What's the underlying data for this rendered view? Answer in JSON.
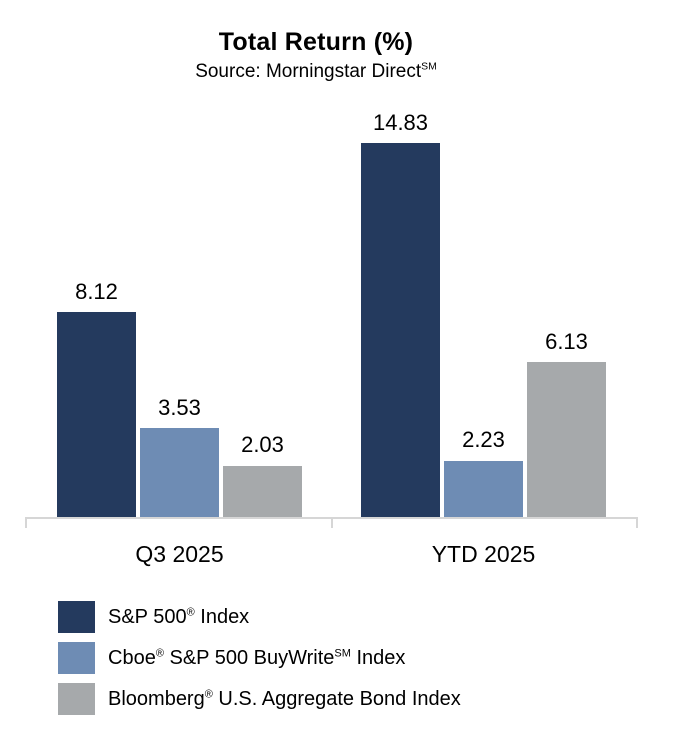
{
  "title": "Total Return (%)",
  "subtitle": {
    "text": "Source: Morningstar Direct",
    "sup": "SM"
  },
  "colors": {
    "background": "#FFFFFF",
    "text": "#000000",
    "axis": "#D6D6D6",
    "series_navy": "#243A5E",
    "series_blue": "#6E8CB4",
    "series_gray": "#A6A9AB"
  },
  "chart_data": {
    "type": "bar",
    "title": "Total Return (%)",
    "subtitle": "Source: Morningstar Direct SM",
    "xlabel": "",
    "ylabel": "",
    "ylim": [
      0,
      14.83
    ],
    "grid": false,
    "legend_position": "bottom-left",
    "value_label_decimals": 2,
    "categories": [
      "Q3 2025",
      "YTD 2025"
    ],
    "series": [
      {
        "name": "S&P 500 (R) Index",
        "color": "#243A5E",
        "values": [
          8.12,
          14.83
        ],
        "label_parts": [
          {
            "t": "S&P 500"
          },
          {
            "sup": "®"
          },
          {
            "t": " Index"
          }
        ]
      },
      {
        "name": "Cboe (R) S&P 500 BuyWrite (SM) Index",
        "color": "#6E8CB4",
        "values": [
          3.53,
          2.23
        ],
        "label_parts": [
          {
            "t": "Cboe"
          },
          {
            "sup": "®"
          },
          {
            "t": " S&P 500 BuyWrite"
          },
          {
            "sup": "SM"
          },
          {
            "t": " Index"
          }
        ]
      },
      {
        "name": "Bloomberg (R) U.S. Aggregate Bond Index",
        "color": "#A6A9AB",
        "values": [
          2.03,
          6.13
        ],
        "label_parts": [
          {
            "t": "Bloomberg"
          },
          {
            "sup": "®"
          },
          {
            "t": " U.S. Aggregate Bond Index"
          }
        ]
      }
    ]
  }
}
